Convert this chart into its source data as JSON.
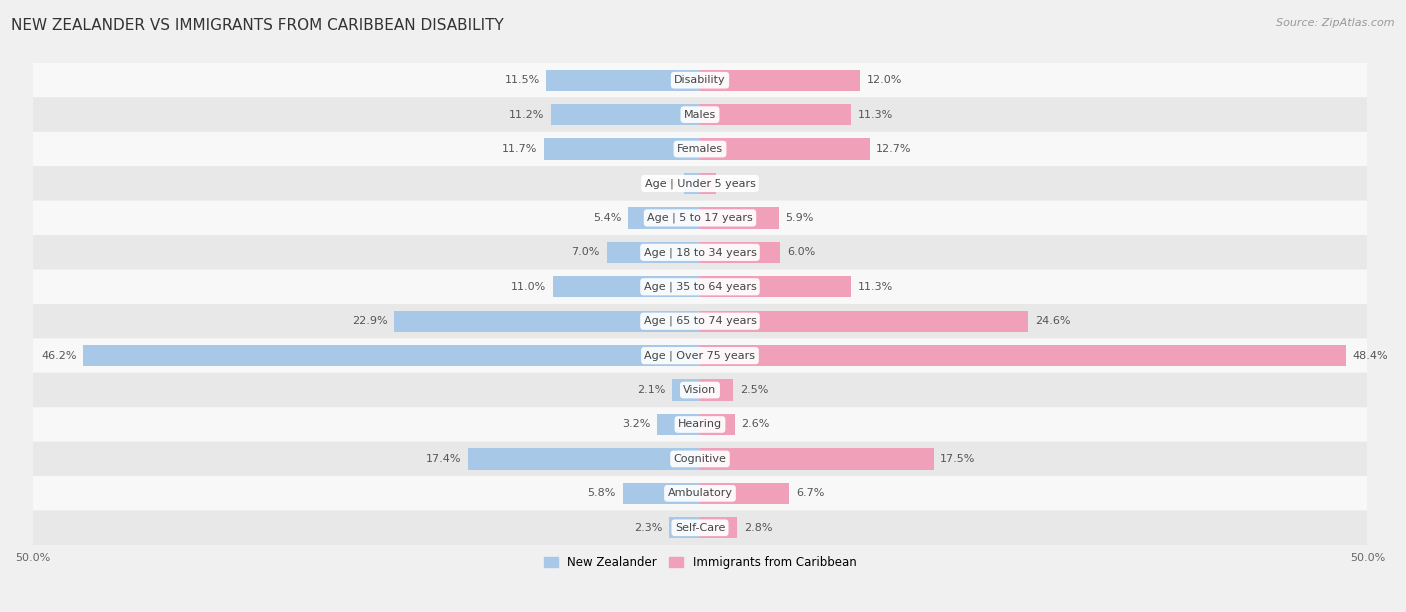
{
  "title": "NEW ZEALANDER VS IMMIGRANTS FROM CARIBBEAN DISABILITY",
  "source": "Source: ZipAtlas.com",
  "categories": [
    "Disability",
    "Males",
    "Females",
    "Age | Under 5 years",
    "Age | 5 to 17 years",
    "Age | 18 to 34 years",
    "Age | 35 to 64 years",
    "Age | 65 to 74 years",
    "Age | Over 75 years",
    "Vision",
    "Hearing",
    "Cognitive",
    "Ambulatory",
    "Self-Care"
  ],
  "nz_values": [
    11.5,
    11.2,
    11.7,
    1.2,
    5.4,
    7.0,
    11.0,
    22.9,
    46.2,
    2.1,
    3.2,
    17.4,
    5.8,
    2.3
  ],
  "carib_values": [
    12.0,
    11.3,
    12.7,
    1.2,
    5.9,
    6.0,
    11.3,
    24.6,
    48.4,
    2.5,
    2.6,
    17.5,
    6.7,
    2.8
  ],
  "nz_color": "#a8c8e8",
  "carib_color": "#f0a0b8",
  "nz_label": "New Zealander",
  "carib_label": "Immigrants from Caribbean",
  "axis_limit": 50.0,
  "background_color": "#f0f0f0",
  "row_color_odd": "#e8e8e8",
  "row_color_even": "#f8f8f8",
  "title_fontsize": 11,
  "source_fontsize": 8,
  "label_fontsize": 8,
  "value_fontsize": 8
}
